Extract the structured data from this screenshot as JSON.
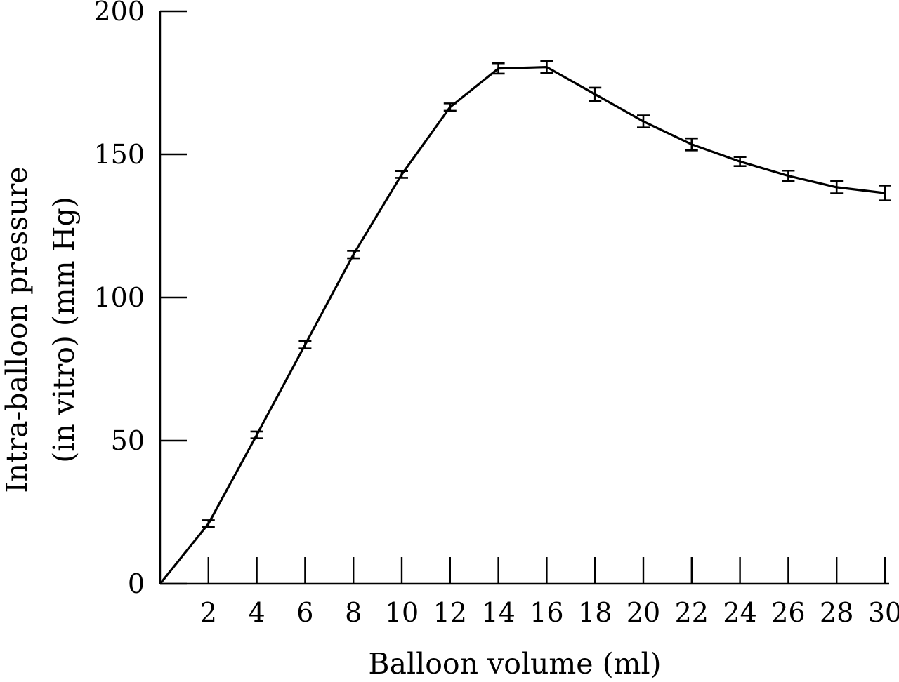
{
  "chart_data": {
    "type": "line",
    "title": "",
    "xlabel": "Balloon volume (ml)",
    "ylabel_lines": [
      "Intra-balloon pressure",
      "(in vitro) (mm Hg)"
    ],
    "xlim": [
      0,
      30
    ],
    "ylim": [
      0,
      200
    ],
    "x_ticks": [
      2,
      4,
      6,
      8,
      10,
      12,
      14,
      16,
      18,
      20,
      22,
      24,
      26,
      28,
      30
    ],
    "y_ticks": [
      0,
      50,
      100,
      150,
      200
    ],
    "grid": false,
    "legend": "none",
    "series": [
      {
        "x": [
          0,
          2,
          4,
          6,
          8,
          10,
          12,
          14,
          16,
          18,
          20,
          22,
          24,
          26,
          28,
          30
        ],
        "y": [
          0,
          21,
          52,
          83.5,
          115,
          143,
          166.5,
          180,
          180.5,
          171,
          161.5,
          153.5,
          147.5,
          142.5,
          138.5,
          136.5
        ],
        "error": [
          0,
          1.2,
          1.2,
          1.3,
          1.3,
          1.2,
          1.3,
          1.8,
          2.1,
          2.3,
          2.1,
          2.1,
          1.6,
          1.8,
          2.1,
          2.6
        ],
        "color": "#000000"
      }
    ]
  }
}
